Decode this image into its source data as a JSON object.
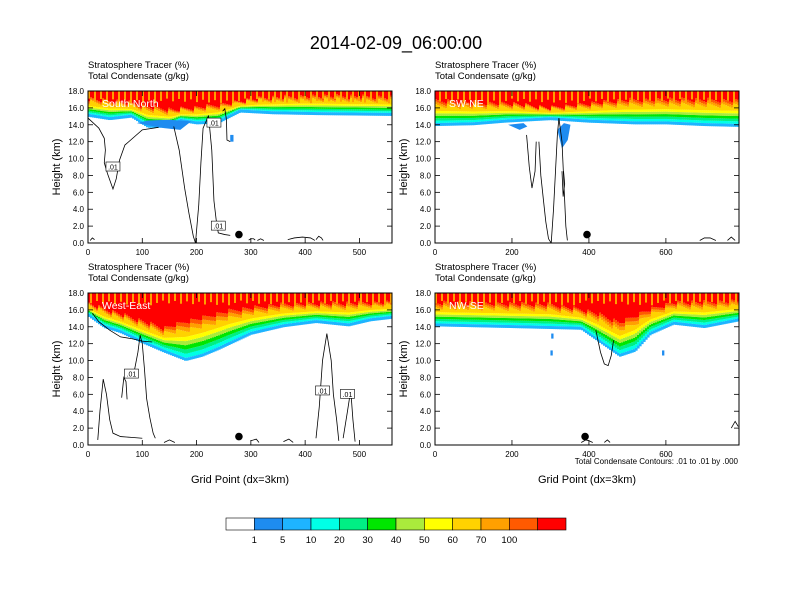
{
  "title": "2014-02-09_06:00:00",
  "footnote": "Total Condensate Contours: .01 to .01 by .000",
  "colorbar": {
    "colors": [
      "#ffffff",
      "#1e8cf0",
      "#1eb4ff",
      "#00ffe6",
      "#00ef84",
      "#00e600",
      "#aaeb3c",
      "#ffff00",
      "#ffd200",
      "#ffa000",
      "#ff5a00",
      "#ff0000"
    ],
    "labels": [
      "1",
      "5",
      "10",
      "20",
      "30",
      "40",
      "50",
      "60",
      "70",
      "100"
    ]
  },
  "chart_data": [
    {
      "type": "contour",
      "panel_label": "South-North",
      "left_strings": [
        "Stratosphere Tracer   (%)",
        "Total Condensate   (g/kg)"
      ],
      "ylabel": "Height (km)",
      "xlabel": "",
      "x_ticks": [
        0,
        100,
        200,
        300,
        400,
        500
      ],
      "y_ticks": [
        "0.0",
        "2.0",
        "4.0",
        "6.0",
        "8.0",
        "10.0",
        "12.0",
        "14.0",
        "16.0",
        "18.0"
      ],
      "xlim": [
        0,
        560
      ],
      "ylim": [
        0,
        18
      ],
      "tracer_bottom_km": [
        [
          0,
          15.3
        ],
        [
          40,
          14.9
        ],
        [
          80,
          15.2
        ],
        [
          110,
          14.0
        ],
        [
          150,
          14.0
        ],
        [
          170,
          14.7
        ],
        [
          200,
          14.4
        ],
        [
          240,
          14.5
        ],
        [
          280,
          15.8
        ],
        [
          340,
          15.6
        ],
        [
          420,
          15.5
        ],
        [
          560,
          15.4
        ]
      ],
      "high_tracer_km": [
        [
          0,
          17.0
        ],
        [
          60,
          16.6
        ],
        [
          120,
          16.0
        ],
        [
          160,
          15.6
        ],
        [
          200,
          15.9
        ],
        [
          260,
          16.4
        ],
        [
          320,
          17.0
        ],
        [
          400,
          17.3
        ],
        [
          560,
          17.2
        ]
      ],
      "blue_patches": [
        [
          [
            90,
            14.2
          ],
          [
            140,
            13.6
          ],
          [
            170,
            13.4
          ],
          [
            190,
            14.4
          ],
          [
            150,
            14.6
          ],
          [
            110,
            14.5
          ]
        ],
        [
          [
            262,
            12.8
          ],
          [
            268,
            12.8
          ],
          [
            268,
            12.0
          ],
          [
            262,
            12.0
          ]
        ]
      ],
      "contour_lines": [
        [
          [
            0,
            14.8
          ],
          [
            20,
            13.6
          ],
          [
            30,
            12.4
          ],
          [
            32,
            11.0
          ],
          [
            30,
            9.5
          ],
          [
            36,
            8.2
          ],
          [
            46,
            6.4
          ],
          [
            52,
            7.6
          ],
          [
            58,
            9.8
          ],
          [
            68,
            11.6
          ],
          [
            100,
            13.4
          ],
          [
            130,
            13.7
          ]
        ],
        [
          [
            158,
            13.8
          ],
          [
            168,
            11.0
          ],
          [
            178,
            6.5
          ],
          [
            186,
            3.5
          ],
          [
            194,
            0.8
          ],
          [
            198,
            0.0
          ]
        ],
        [
          [
            198,
            0.0
          ],
          [
            204,
            4.5
          ],
          [
            208,
            9.5
          ],
          [
            212,
            13.6
          ],
          [
            222,
            15.1
          ],
          [
            228,
            11.0
          ],
          [
            232,
            5.0
          ],
          [
            236,
            2.8
          ],
          [
            240,
            1.2
          ],
          [
            252,
            1.0
          ],
          [
            262,
            0.9
          ]
        ],
        [
          [
            248,
            15.6
          ],
          [
            252,
            15.9
          ],
          [
            255,
            14.6
          ],
          [
            256,
            12.2
          ],
          [
            262,
            12.0
          ]
        ],
        [
          [
            296,
            0.35
          ],
          [
            300,
            0.5
          ],
          [
            305,
            0.5
          ],
          [
            308,
            0.35
          ]
        ],
        [
          [
            312,
            0.3
          ],
          [
            318,
            0.5
          ],
          [
            324,
            0.3
          ]
        ],
        [
          [
            368,
            0.4
          ],
          [
            380,
            0.6
          ],
          [
            395,
            0.7
          ],
          [
            410,
            0.6
          ],
          [
            418,
            0.3
          ]
        ],
        [
          [
            420,
            0.4
          ],
          [
            425,
            0.8
          ],
          [
            430,
            0.6
          ],
          [
            433,
            0.3
          ]
        ],
        [
          [
            4,
            0.3
          ],
          [
            8,
            0.6
          ],
          [
            12,
            0.4
          ]
        ]
      ],
      "contour_labels": [
        {
          "x": 46,
          "y": 9.0,
          "text": ".01"
        },
        {
          "x": 240,
          "y": 2.0,
          "text": ".01"
        },
        {
          "x": 232,
          "y": 14.2,
          "text": ".01"
        }
      ],
      "marker": {
        "x": 278,
        "y": 1.0
      }
    },
    {
      "type": "contour",
      "panel_label": "SW-NE",
      "left_strings": [
        "Stratosphere Tracer   (%)",
        "Total Condensate   (g/kg)"
      ],
      "ylabel": "Height (km)",
      "xlabel": "",
      "x_ticks": [
        0,
        200,
        400,
        600
      ],
      "y_ticks": [
        "0.0",
        "2.0",
        "4.0",
        "6.0",
        "8.0",
        "10.0",
        "12.0",
        "14.0",
        "16.0",
        "18.0"
      ],
      "xlim": [
        0,
        790
      ],
      "ylim": [
        0,
        18
      ],
      "tracer_bottom_km": [
        [
          0,
          14.2
        ],
        [
          100,
          14.3
        ],
        [
          180,
          14.6
        ],
        [
          300,
          14.9
        ],
        [
          400,
          14.6
        ],
        [
          520,
          14.4
        ],
        [
          600,
          14.4
        ],
        [
          700,
          14.2
        ],
        [
          790,
          14.1
        ]
      ],
      "high_tracer_km": [
        [
          0,
          16.8
        ],
        [
          200,
          16.4
        ],
        [
          300,
          15.8
        ],
        [
          400,
          16.4
        ],
        [
          500,
          16.9
        ],
        [
          600,
          17.0
        ],
        [
          790,
          16.9
        ]
      ],
      "blue_patches": [
        [
          [
            190,
            14.0
          ],
          [
            220,
            13.4
          ],
          [
            240,
            13.8
          ],
          [
            230,
            14.2
          ]
        ],
        [
          [
            318,
            13.4
          ],
          [
            330,
            11.2
          ],
          [
            345,
            12.2
          ],
          [
            352,
            14.0
          ],
          [
            335,
            14.2
          ]
        ]
      ],
      "contour_lines": [
        [
          [
            270,
            12.0
          ],
          [
            275,
            8.0
          ],
          [
            282,
            5.0
          ],
          [
            288,
            2.5
          ],
          [
            295,
            0.5
          ],
          [
            302,
            0.0
          ]
        ],
        [
          [
            302,
            0.0
          ],
          [
            308,
            4.0
          ],
          [
            312,
            7.5
          ],
          [
            318,
            12.8
          ],
          [
            322,
            14.8
          ],
          [
            330,
            12.0
          ],
          [
            336,
            6.0
          ],
          [
            340,
            2.0
          ],
          [
            344,
            0.3
          ]
        ],
        [
          [
            238,
            12.8
          ],
          [
            245,
            9.0
          ],
          [
            252,
            6.5
          ],
          [
            260,
            8.5
          ],
          [
            263,
            12.0
          ]
        ],
        [
          [
            330,
            8.5
          ],
          [
            333,
            5.5
          ],
          [
            337,
            7.0
          ],
          [
            334,
            8.5
          ]
        ],
        [
          [
            688,
            0.3
          ],
          [
            700,
            0.6
          ],
          [
            715,
            0.6
          ],
          [
            730,
            0.3
          ]
        ],
        [
          [
            760,
            0.3
          ],
          [
            770,
            0.7
          ],
          [
            780,
            0.3
          ]
        ]
      ],
      "contour_labels": [],
      "marker": {
        "x": 395,
        "y": 1.0
      }
    },
    {
      "type": "contour",
      "panel_label": "West-East",
      "left_strings": [
        "Stratosphere Tracer   (%)",
        "Total Condensate   (g/kg)"
      ],
      "ylabel": "Height (km)",
      "xlabel": "Grid Point (dx=3km)",
      "x_ticks": [
        0,
        100,
        200,
        300,
        400,
        500
      ],
      "y_ticks": [
        "0.0",
        "2.0",
        "4.0",
        "6.0",
        "8.0",
        "10.0",
        "12.0",
        "14.0",
        "16.0",
        "18.0"
      ],
      "xlim": [
        0,
        560
      ],
      "ylim": [
        0,
        18
      ],
      "tracer_bottom_km": [
        [
          0,
          15.6
        ],
        [
          30,
          14.2
        ],
        [
          60,
          13.6
        ],
        [
          100,
          12.4
        ],
        [
          140,
          11.3
        ],
        [
          180,
          10.3
        ],
        [
          210,
          10.8
        ],
        [
          240,
          11.6
        ],
        [
          300,
          13.4
        ],
        [
          360,
          14.3
        ],
        [
          420,
          14.8
        ],
        [
          480,
          14.4
        ],
        [
          520,
          15.0
        ],
        [
          560,
          15.3
        ]
      ],
      "high_tracer_km": [
        [
          0,
          16.6
        ],
        [
          60,
          15.4
        ],
        [
          100,
          14.6
        ],
        [
          140,
          13.8
        ],
        [
          180,
          14.8
        ],
        [
          260,
          16.0
        ],
        [
          360,
          16.6
        ],
        [
          560,
          16.8
        ]
      ],
      "blue_patches": [],
      "contour_lines": [
        [
          [
            8,
            15.6
          ],
          [
            20,
            14.6
          ],
          [
            40,
            13.6
          ],
          [
            60,
            12.8
          ],
          [
            80,
            12.6
          ],
          [
            100,
            12.3
          ],
          [
            118,
            12.2
          ]
        ],
        [
          [
            18,
            0.6
          ],
          [
            22,
            4.0
          ],
          [
            28,
            7.8
          ],
          [
            34,
            6.0
          ],
          [
            40,
            3.0
          ],
          [
            46,
            1.4
          ],
          [
            60,
            1.0
          ],
          [
            80,
            0.9
          ],
          [
            100,
            0.8
          ]
        ],
        [
          [
            86,
            9.0
          ],
          [
            92,
            11.0
          ],
          [
            96,
            13.0
          ],
          [
            100,
            12.0
          ],
          [
            104,
            9.0
          ],
          [
            108,
            5.5
          ],
          [
            114,
            3.2
          ],
          [
            120,
            1.4
          ],
          [
            124,
            0.8
          ]
        ],
        [
          [
            62,
            5.6
          ],
          [
            66,
            8.0
          ],
          [
            70,
            7.5
          ],
          [
            72,
            5.4
          ]
        ],
        [
          [
            420,
            0.8
          ],
          [
            426,
            4.5
          ],
          [
            432,
            10.0
          ],
          [
            440,
            13.2
          ],
          [
            448,
            10.0
          ],
          [
            452,
            6.0
          ],
          [
            458,
            3.0
          ],
          [
            462,
            0.5
          ]
        ],
        [
          [
            470,
            0.8
          ],
          [
            478,
            4.0
          ],
          [
            484,
            6.5
          ],
          [
            488,
            3.0
          ],
          [
            492,
            0.4
          ]
        ],
        [
          [
            140,
            0.3
          ],
          [
            150,
            0.6
          ],
          [
            160,
            0.3
          ]
        ],
        [
          [
            300,
            0.5
          ],
          [
            310,
            0.7
          ],
          [
            315,
            0.3
          ]
        ],
        [
          [
            360,
            0.4
          ],
          [
            370,
            0.7
          ],
          [
            378,
            0.3
          ]
        ]
      ],
      "contour_labels": [
        {
          "x": 80,
          "y": 8.4,
          "text": ".01"
        },
        {
          "x": 432,
          "y": 6.4,
          "text": ".01"
        },
        {
          "x": 478,
          "y": 6.0,
          "text": ".01"
        }
      ],
      "marker": {
        "x": 278,
        "y": 1.0
      }
    },
    {
      "type": "contour",
      "panel_label": "NW-SE",
      "left_strings": [
        "Stratosphere Tracer   (%)",
        "Total Condensate   (g/kg)"
      ],
      "ylabel": "Height (km)",
      "xlabel": "Grid Point (dx=3km)",
      "x_ticks": [
        0,
        200,
        400,
        600
      ],
      "y_ticks": [
        "0.0",
        "2.0",
        "4.0",
        "6.0",
        "8.0",
        "10.0",
        "12.0",
        "14.0",
        "16.0",
        "18.0"
      ],
      "xlim": [
        0,
        790
      ],
      "ylim": [
        0,
        18
      ],
      "tracer_bottom_km": [
        [
          0,
          14.4
        ],
        [
          200,
          14.2
        ],
        [
          380,
          14.0
        ],
        [
          430,
          12.4
        ],
        [
          480,
          10.8
        ],
        [
          520,
          11.4
        ],
        [
          560,
          13.4
        ],
        [
          620,
          14.6
        ],
        [
          700,
          14.2
        ],
        [
          790,
          15.0
        ]
      ],
      "high_tracer_km": [
        [
          0,
          16.8
        ],
        [
          300,
          16.6
        ],
        [
          420,
          15.6
        ],
        [
          480,
          14.6
        ],
        [
          540,
          15.8
        ],
        [
          620,
          16.8
        ],
        [
          790,
          17.0
        ]
      ],
      "blue_patches": [
        [
          [
            302,
            13.2
          ],
          [
            308,
            13.2
          ],
          [
            308,
            12.6
          ],
          [
            302,
            12.6
          ]
        ],
        [
          [
            300,
            11.2
          ],
          [
            306,
            11.2
          ],
          [
            306,
            10.6
          ],
          [
            300,
            10.6
          ]
        ],
        [
          [
            590,
            11.2
          ],
          [
            596,
            11.2
          ],
          [
            596,
            10.6
          ],
          [
            590,
            10.6
          ]
        ]
      ],
      "contour_lines": [
        [
          [
            418,
            13.6
          ],
          [
            430,
            11.0
          ],
          [
            440,
            9.6
          ],
          [
            450,
            9.4
          ],
          [
            458,
            10.6
          ],
          [
            464,
            12.4
          ]
        ],
        [
          [
            380,
            0.3
          ],
          [
            392,
            0.6
          ],
          [
            400,
            0.5
          ],
          [
            410,
            0.3
          ]
        ],
        [
          [
            440,
            0.3
          ],
          [
            448,
            0.6
          ],
          [
            455,
            0.3
          ]
        ],
        [
          [
            770,
            2.0
          ],
          [
            780,
            2.8
          ],
          [
            788,
            2.2
          ]
        ]
      ],
      "contour_labels": [],
      "marker": {
        "x": 390,
        "y": 1.0
      }
    }
  ]
}
